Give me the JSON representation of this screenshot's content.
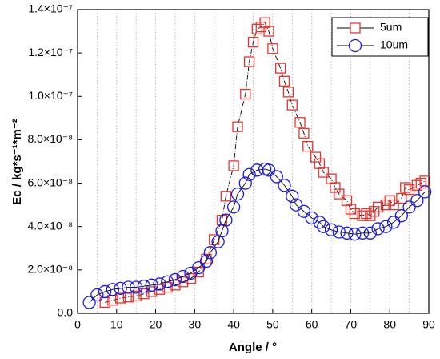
{
  "chart_data": {
    "type": "scatter",
    "xlabel": "Angle / °",
    "ylabel": "Ec / kg*s⁻¹*m⁻²",
    "xlim": [
      0,
      90
    ],
    "xticks": [
      0,
      10,
      20,
      30,
      40,
      50,
      60,
      70,
      80,
      90
    ],
    "xgrid": [
      5,
      10,
      15,
      20,
      25,
      30,
      35,
      40,
      45,
      50,
      55,
      60,
      65,
      70,
      75,
      80,
      85
    ],
    "ylim": [
      0,
      1.4e-07
    ],
    "yticks": [
      {
        "value": 0,
        "label": "0.0"
      },
      {
        "value": 2e-08,
        "label": "2.0×10⁻⁸"
      },
      {
        "value": 4e-08,
        "label": "4.0×10⁻⁸"
      },
      {
        "value": 6e-08,
        "label": "6.0×10⁻⁸"
      },
      {
        "value": 8e-08,
        "label": "8.0×10⁻⁸"
      },
      {
        "value": 1e-07,
        "label": "1.0×10⁻⁷"
      },
      {
        "value": 1.2e-07,
        "label": "1.2×10⁻⁷"
      },
      {
        "value": 1.4e-07,
        "label": "1.4×10⁻⁷"
      }
    ],
    "legend": "upper right",
    "series": [
      {
        "name": "5um",
        "color": "#e8322e",
        "marker": "square",
        "x": [
          7,
          9,
          11,
          13,
          15,
          17,
          19,
          21,
          23,
          25,
          27,
          29,
          31,
          33,
          35,
          37,
          38,
          40,
          41,
          43,
          44,
          45,
          46,
          47,
          48,
          49,
          50,
          52,
          53,
          54,
          55,
          57,
          58,
          59,
          61,
          62,
          63,
          65,
          66,
          67,
          69,
          70,
          71,
          73,
          74,
          75,
          76,
          77,
          79,
          80,
          81,
          83,
          84,
          85,
          87,
          88,
          89
        ],
        "values": [
          5e-09,
          6e-09,
          7e-09,
          7.5e-09,
          8e-09,
          9e-09,
          1e-08,
          1.1e-08,
          1.2e-08,
          1.3e-08,
          1.45e-08,
          1.6e-08,
          1.9e-08,
          2.5e-08,
          3.4e-08,
          4.3e-08,
          5.4e-08,
          6.8e-08,
          8.6e-08,
          1.01e-07,
          1.16e-07,
          1.25e-07,
          1.31e-07,
          1.32e-07,
          1.34e-07,
          1.3e-07,
          1.22e-07,
          1.13e-07,
          1.07e-07,
          1.02e-07,
          9.6e-08,
          8.8e-08,
          8.3e-08,
          7.7e-08,
          7.2e-08,
          6.9e-08,
          6.5e-08,
          6.2e-08,
          5.8e-08,
          5.5e-08,
          5.2e-08,
          4.8e-08,
          4.6e-08,
          4.5e-08,
          4.6e-08,
          4.5e-08,
          4.7e-08,
          4.9e-08,
          5e-08,
          5.2e-08,
          5e-08,
          5.3e-08,
          5.8e-08,
          5.7e-08,
          5.9e-08,
          6e-08,
          6.1e-08
        ]
      },
      {
        "name": "10um",
        "color": "#1a1adc",
        "marker": "circle",
        "x": [
          3,
          5,
          7,
          9,
          11,
          13,
          15,
          17,
          19,
          21,
          23,
          25,
          27,
          29,
          31,
          33,
          34,
          36,
          37,
          38,
          40,
          41,
          43,
          44,
          46,
          48,
          49,
          51,
          53,
          55,
          56,
          58,
          60,
          62,
          63,
          65,
          67,
          69,
          71,
          73,
          75,
          77,
          79,
          81,
          83,
          85,
          87,
          89
        ],
        "values": [
          5e-09,
          8.5e-09,
          1e-08,
          1.1e-08,
          1.15e-08,
          1.2e-08,
          1.2e-08,
          1.25e-08,
          1.3e-08,
          1.35e-08,
          1.45e-08,
          1.55e-08,
          1.7e-08,
          1.85e-08,
          2.1e-08,
          2.4e-08,
          2.8e-08,
          3.3e-08,
          3.8e-08,
          4.3e-08,
          4.9e-08,
          5.5e-08,
          6e-08,
          6.4e-08,
          6.6e-08,
          6.65e-08,
          6.6e-08,
          6.3e-08,
          5.9e-08,
          5.4e-08,
          5e-08,
          4.7e-08,
          4.4e-08,
          4.2e-08,
          4e-08,
          3.85e-08,
          3.75e-08,
          3.7e-08,
          3.65e-08,
          3.7e-08,
          3.7e-08,
          3.9e-08,
          4e-08,
          4.2e-08,
          4.5e-08,
          4.9e-08,
          5.2e-08,
          5.6e-08
        ]
      }
    ]
  }
}
